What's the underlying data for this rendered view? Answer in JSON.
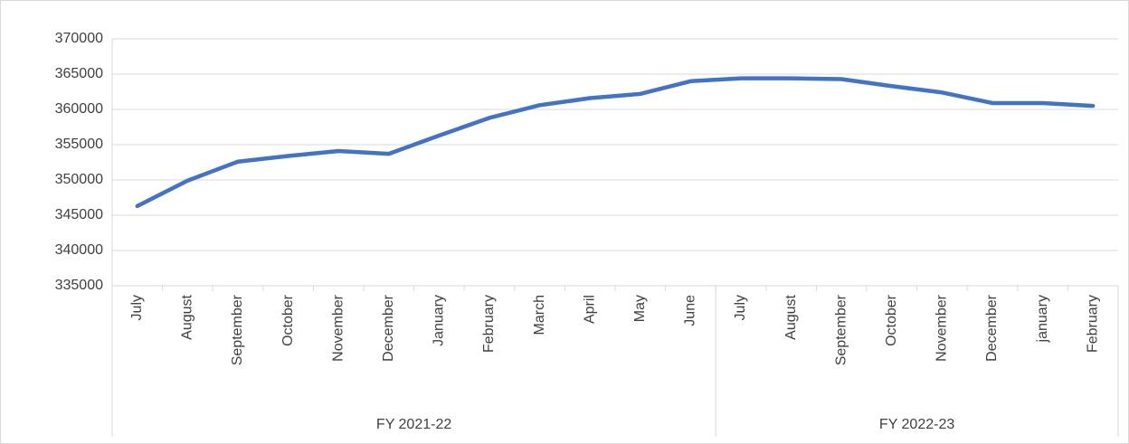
{
  "chart_data": {
    "type": "line",
    "categories": [
      "July",
      "August",
      "September",
      "October",
      "November",
      "December",
      "January",
      "February",
      "March",
      "April",
      "May",
      "June",
      "July",
      "August",
      "September",
      "October",
      "November",
      "December",
      "january",
      "February"
    ],
    "groups": [
      {
        "name": "FY 2021-22",
        "count": 12
      },
      {
        "name": "FY 2022-23",
        "count": 8
      }
    ],
    "series": [
      {
        "color": "#4472c4",
        "values": [
          346300,
          349900,
          352600,
          353400,
          354100,
          353700,
          356300,
          358800,
          360600,
          361600,
          362200,
          364000,
          364400,
          364400,
          364300,
          363300,
          362400,
          360900,
          360900,
          360500
        ]
      }
    ],
    "ylim": [
      335000,
      370000
    ],
    "yticks": [
      335000,
      340000,
      345000,
      350000,
      355000,
      360000,
      365000,
      370000
    ],
    "grid": true
  }
}
